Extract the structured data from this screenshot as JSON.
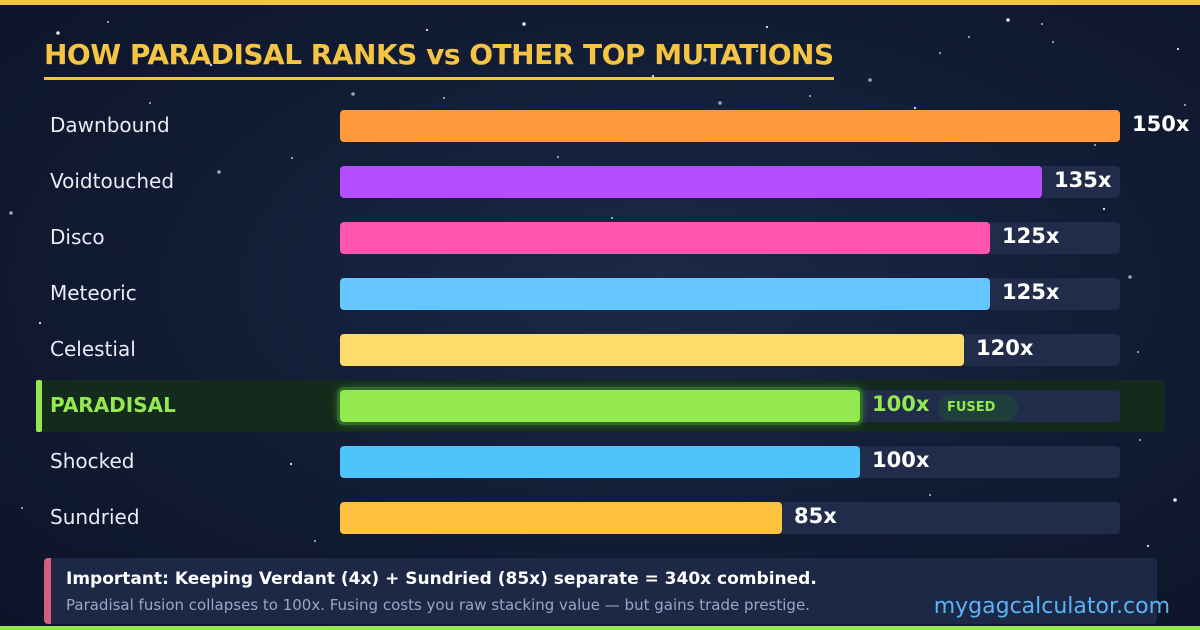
{
  "chart_data": {
    "type": "bar",
    "orientation": "horizontal",
    "title": "HOW PARADISAL RANKS vs OTHER TOP MUTATIONS",
    "categories": [
      "Dawnbound",
      "Voidtouched",
      "Disco",
      "Meteoric",
      "Celestial",
      "PARADISAL",
      "Shocked",
      "Sundried"
    ],
    "values": [
      150,
      135,
      125,
      125,
      120,
      100,
      100,
      85
    ],
    "value_labels": [
      "150x",
      "135x",
      "125x",
      "125x",
      "120x",
      "100x",
      "100x",
      "85x"
    ],
    "colors": [
      "#ff9a3c",
      "#b64dff",
      "#ff55ac",
      "#66c6ff",
      "#ffdb6b",
      "#93e94f",
      "#4ec3fc",
      "#ffc23e"
    ],
    "highlight_index": 5,
    "highlight_tag": "FUSED",
    "xlim": [
      0,
      150
    ],
    "grid": false,
    "legend": "none"
  },
  "note": {
    "main": "Important: Keeping Verdant (4x) + Sundried (85x) separate = 340x combined.",
    "sub": "Paradisal fusion collapses to 100x. Fusing costs you raw stacking value — but gains trade prestige."
  },
  "watermark": "mygagcalculator.com",
  "theme": {
    "title_color": "#f5c443",
    "highlight_color": "#93e94f",
    "track_color": "#202c4a",
    "note_accent": "#d45f78",
    "watermark_color": "#5ab4f4"
  }
}
